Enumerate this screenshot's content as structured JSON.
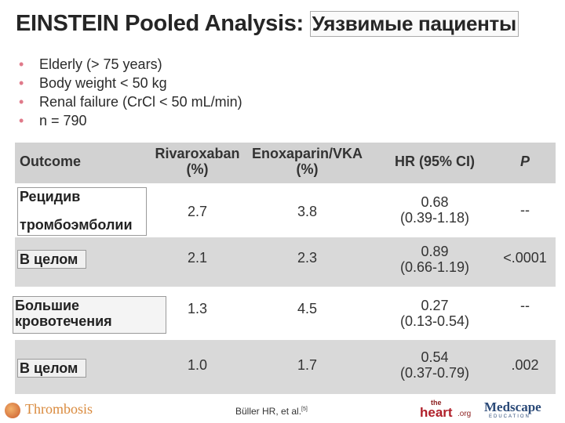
{
  "title": {
    "main": "EINSTEIN Pooled Analysis:",
    "ru": "Уязвимые пациенты"
  },
  "bullets": [
    "Elderly (> 75 years)",
    "Body weight < 50 kg",
    "Renal failure (CrCl < 50 mL/min)",
    "n = 790"
  ],
  "bullet_char": "•",
  "table": {
    "headers": {
      "outcome": "Outcome",
      "rivaroxaban": "Rivaroxaban",
      "rivaroxaban_unit": "(%)",
      "enoxaparin": "Enoxaparin/VKA",
      "enoxaparin_unit": "(%)",
      "hr": "HR (95% CI)",
      "p": "P"
    },
    "rows": [
      {
        "label_line1": "Рецидив",
        "label_line2": "тромбоэмболии",
        "rivaroxaban": "2.7",
        "enoxaparin": "3.8",
        "hr": "0.68",
        "ci": "(0.39-1.18)",
        "p": "--"
      },
      {
        "label_line1": "В целом",
        "label_line2": "",
        "rivaroxaban": "2.1",
        "enoxaparin": "2.3",
        "hr": "0.89",
        "ci": "(0.66-1.19)",
        "p": "<.0001"
      },
      {
        "label_line1": "Большие",
        "label_line2": "кровотечения",
        "rivaroxaban": "1.3",
        "enoxaparin": "4.5",
        "hr": "0.27",
        "ci": "(0.13-0.54)",
        "p": "--"
      },
      {
        "label_line1": "В целом",
        "label_line2": "",
        "rivaroxaban": "1.0",
        "enoxaparin": "1.7",
        "hr": "0.54",
        "ci": "(0.37-0.79)",
        "p": ".002"
      }
    ]
  },
  "footer": {
    "thrombosis": "Thrombosis",
    "citation": "Büller HR, et al.",
    "citation_sup": "[5]",
    "heart_the": "the",
    "heart_name": "heart",
    "heart_org": ".org",
    "medscape": "Medscape",
    "medscape_sub": "EDUCATION"
  }
}
